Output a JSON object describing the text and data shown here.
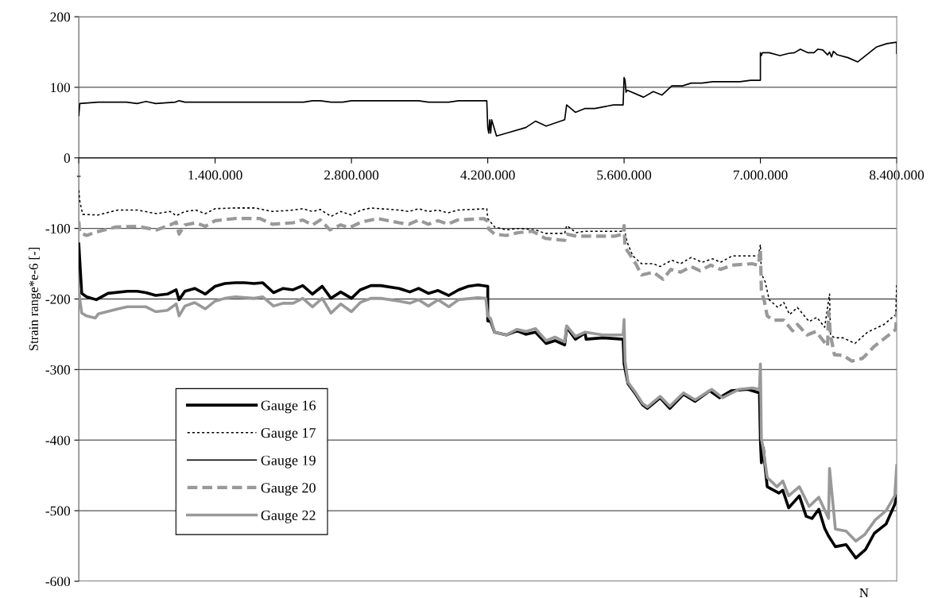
{
  "chart_data": {
    "type": "line",
    "xlabel": "N",
    "ylabel": "Strain range*e-6 [-]",
    "xlim": [
      0,
      8400000
    ],
    "xticks": [
      {
        "value": 0,
        "label": "-"
      },
      {
        "value": 1400000,
        "label": "1.400.000"
      },
      {
        "value": 2800000,
        "label": "2.800.000"
      },
      {
        "value": 4200000,
        "label": "4.200.000"
      },
      {
        "value": 5600000,
        "label": "5.600.000"
      },
      {
        "value": 7000000,
        "label": "7.000.000"
      },
      {
        "value": 8400000,
        "label": "8.400.000"
      }
    ],
    "ylim": [
      -600,
      200
    ],
    "yticks": [
      -600,
      -500,
      -400,
      -300,
      -200,
      -100,
      0,
      100,
      200
    ],
    "grid": "y",
    "legend": "bottom left",
    "marker": "none",
    "series": [
      {
        "name": "Gauge 16",
        "color": "#000000",
        "line_style": "solid",
        "x": [
          0,
          30000,
          80000,
          180000,
          300000,
          500000,
          600000,
          690000,
          790000,
          910000,
          1000000,
          1030000,
          1090000,
          1190000,
          1300000,
          1400000,
          1500000,
          1610000,
          1700000,
          1800000,
          1890000,
          2000000,
          2100000,
          2200000,
          2300000,
          2400000,
          2500000,
          2590000,
          2690000,
          2800000,
          2890000,
          3000000,
          3100000,
          3290000,
          3400000,
          3490000,
          3590000,
          3690000,
          3800000,
          3900000,
          4000000,
          4100000,
          4200000,
          4200000,
          4230000,
          4270000,
          4390000,
          4500000,
          4590000,
          4690000,
          4800000,
          4890000,
          4990000,
          5010000,
          5100000,
          5200000,
          5210000,
          5380000,
          5590000,
          5600000,
          5640000,
          5720000,
          5790000,
          5840000,
          5970000,
          6070000,
          6210000,
          6330000,
          6480000,
          6580000,
          6700000,
          6870000,
          6990000,
          7000000,
          7010000,
          7030000,
          7050000,
          7070000,
          7190000,
          7230000,
          7290000,
          7400000,
          7470000,
          7530000,
          7600000,
          7660000,
          7700000,
          7770000,
          7880000,
          7980000,
          8080000,
          8170000,
          8290000,
          8380000,
          8400000
        ],
        "values": [
          -122,
          -192,
          -197,
          -201,
          -192,
          -189,
          -189,
          -191,
          -195,
          -193,
          -187,
          -201,
          -189,
          -185,
          -193,
          -182,
          -178,
          -177,
          -177,
          -178,
          -177,
          -191,
          -185,
          -187,
          -181,
          -193,
          -182,
          -199,
          -190,
          -199,
          -187,
          -181,
          -181,
          -185,
          -190,
          -185,
          -192,
          -188,
          -195,
          -187,
          -182,
          -180,
          -182,
          -231,
          -232,
          -247,
          -251,
          -245,
          -250,
          -247,
          -263,
          -259,
          -265,
          -240,
          -257,
          -248,
          -257,
          -255,
          -257,
          -292,
          -320,
          -335,
          -350,
          -355,
          -340,
          -355,
          -335,
          -345,
          -330,
          -340,
          -330,
          -328,
          -333,
          -400,
          -432,
          -411,
          -440,
          -466,
          -475,
          -471,
          -496,
          -479,
          -508,
          -511,
          -498,
          -525,
          -536,
          -551,
          -548,
          -567,
          -555,
          -532,
          -519,
          -491,
          -479
        ]
      },
      {
        "name": "Gauge 17",
        "color": "#000000",
        "line_style": "dotted",
        "x": [
          0,
          10000,
          40000,
          200000,
          400000,
          600000,
          800000,
          940000,
          1000000,
          1090000,
          1200000,
          1300000,
          1400000,
          1600000,
          1810000,
          1990000,
          2200000,
          2300000,
          2400000,
          2480000,
          2590000,
          2690000,
          2800000,
          2900000,
          3000000,
          3290000,
          3390000,
          3490000,
          3590000,
          3690000,
          3790000,
          3890000,
          4190000,
          4200000,
          4230000,
          4270000,
          4390000,
          4510000,
          4690000,
          4790000,
          4990000,
          5010000,
          5110000,
          5200000,
          5590000,
          5600000,
          5630000,
          5690000,
          5780000,
          5900000,
          5970000,
          6090000,
          6180000,
          6290000,
          6400000,
          6510000,
          6590000,
          6710000,
          6980000,
          7000000,
          7010000,
          7050000,
          7090000,
          7180000,
          7240000,
          7300000,
          7380000,
          7500000,
          7580000,
          7660000,
          7710000,
          7720000,
          7760000,
          7850000,
          7970000,
          8100000,
          8270000,
          8390000,
          8400000
        ],
        "values": [
          -46,
          -61,
          -80,
          -81,
          -74,
          -74,
          -79,
          -76,
          -82,
          -76,
          -74,
          -79,
          -72,
          -71,
          -71,
          -76,
          -74,
          -72,
          -76,
          -73,
          -83,
          -76,
          -81,
          -74,
          -71,
          -74,
          -76,
          -72,
          -76,
          -74,
          -78,
          -74,
          -72,
          -86,
          -91,
          -98,
          -102,
          -100,
          -102,
          -107,
          -107,
          -96,
          -106,
          -104,
          -104,
          -98,
          -119,
          -139,
          -150,
          -150,
          -154,
          -145,
          -150,
          -141,
          -148,
          -143,
          -148,
          -139,
          -139,
          -123,
          -164,
          -176,
          -201,
          -212,
          -205,
          -222,
          -212,
          -232,
          -226,
          -240,
          -193,
          -251,
          -255,
          -255,
          -263,
          -247,
          -236,
          -222,
          -179
        ]
      },
      {
        "name": "Gauge 19",
        "color": "#000000",
        "line_style": "solid",
        "x": [
          0,
          10000,
          200000,
          490000,
          600000,
          690000,
          790000,
          990000,
          1030000,
          1090000,
          2310000,
          2400000,
          2480000,
          2590000,
          2710000,
          2800000,
          3490000,
          3590000,
          3800000,
          3900000,
          4190000,
          4200000,
          4210000,
          4220000,
          4230000,
          4240000,
          4290000,
          4390000,
          4590000,
          4690000,
          4800000,
          4990000,
          5010000,
          5100000,
          5200000,
          5300000,
          5490000,
          5590000,
          5600000,
          5610000,
          5620000,
          5630000,
          5800000,
          5900000,
          5990000,
          6090000,
          6200000,
          6290000,
          6400000,
          6510000,
          6790000,
          6900000,
          7000000,
          7000000,
          7010000,
          7020000,
          7090000,
          7200000,
          7290000,
          7350000,
          7410000,
          7490000,
          7550000,
          7590000,
          7640000,
          7690000,
          7710000,
          7730000,
          7750000,
          7790000,
          7900000,
          8000000,
          8190000,
          8300000,
          8400000,
          8400000
        ],
        "values": [
          60,
          77,
          79,
          79,
          77,
          80,
          77,
          79,
          81,
          79,
          79,
          81,
          81,
          79,
          79,
          81,
          81,
          79,
          79,
          81,
          81,
          43,
          35,
          54,
          35,
          54,
          31,
          35,
          43,
          52,
          45,
          54,
          75,
          64.5,
          70,
          70,
          75,
          75,
          114,
          110,
          93,
          96,
          86,
          94,
          89,
          102,
          102,
          106,
          106,
          108,
          108,
          110,
          110,
          149,
          145,
          149,
          149,
          145,
          148,
          149,
          154,
          149,
          149,
          154,
          153,
          146,
          150,
          143,
          151,
          146,
          142,
          136,
          157,
          162,
          164,
          148
        ]
      },
      {
        "name": "Gauge 20",
        "color": "#999999",
        "line_style": "dashed",
        "x": [
          0,
          10000,
          80000,
          180000,
          380000,
          600000,
          800000,
          940000,
          1000000,
          1030000,
          1090000,
          1200000,
          1300000,
          1400000,
          1600000,
          1860000,
          1990000,
          2200000,
          2300000,
          2400000,
          2480000,
          2580000,
          2690000,
          2780000,
          2900000,
          3070000,
          3290000,
          3390000,
          3490000,
          3590000,
          3690000,
          3790000,
          3890000,
          4160000,
          4200000,
          4210000,
          4270000,
          4390000,
          4510000,
          4660000,
          4790000,
          4990000,
          5010000,
          5110000,
          5200000,
          5500000,
          5590000,
          5600000,
          5610000,
          5650000,
          5720000,
          5780000,
          5900000,
          6000000,
          6080000,
          6180000,
          6290000,
          6380000,
          6490000,
          6590000,
          6710000,
          6910000,
          6980000,
          7000000,
          7010000,
          7040000,
          7070000,
          7130000,
          7240000,
          7330000,
          7380000,
          7480000,
          7570000,
          7690000,
          7700000,
          7720000,
          7760000,
          7850000,
          7940000,
          8050000,
          8170000,
          8300000,
          8390000,
          8400000
        ],
        "values": [
          -90,
          -106,
          -110,
          -105,
          -98,
          -97,
          -102,
          -95,
          -91,
          -108,
          -95,
          -92,
          -97,
          -89,
          -86,
          -86,
          -94,
          -92,
          -88,
          -95,
          -88,
          -102,
          -95,
          -99,
          -91,
          -86,
          -92,
          -94,
          -88,
          -94,
          -89,
          -94,
          -88,
          -86,
          -90,
          -101,
          -108,
          -110,
          -106,
          -104,
          -114,
          -117,
          -108,
          -111,
          -111,
          -111,
          -108,
          -96,
          -127,
          -135,
          -150,
          -166,
          -162,
          -172,
          -158,
          -162,
          -154,
          -160,
          -152,
          -158,
          -152,
          -150,
          -152,
          -129,
          -189,
          -203,
          -224,
          -230,
          -230,
          -245,
          -236,
          -251,
          -246,
          -267,
          -218,
          -251,
          -279,
          -280,
          -288,
          -284,
          -267,
          -253,
          -243,
          -218
        ]
      },
      {
        "name": "Gauge 22",
        "color": "#999999",
        "line_style": "solid",
        "x": [
          0,
          30000,
          80000,
          170000,
          200000,
          400000,
          500000,
          690000,
          790000,
          910000,
          1000000,
          1030000,
          1090000,
          1190000,
          1300000,
          1400000,
          1500000,
          1610000,
          1800000,
          1890000,
          2000000,
          2100000,
          2200000,
          2300000,
          2400000,
          2500000,
          2590000,
          2690000,
          2800000,
          2890000,
          3000000,
          3100000,
          3290000,
          3400000,
          3490000,
          3590000,
          3690000,
          3800000,
          3900000,
          4100000,
          4180000,
          4200000,
          4230000,
          4270000,
          4390000,
          4500000,
          4590000,
          4690000,
          4800000,
          4890000,
          4990000,
          5010000,
          5100000,
          5200000,
          5380000,
          5590000,
          5600000,
          5610000,
          5640000,
          5720000,
          5790000,
          5840000,
          5970000,
          6070000,
          6210000,
          6330000,
          6500000,
          6610000,
          6780000,
          6920000,
          6990000,
          7000000,
          7010000,
          7030000,
          7070000,
          7170000,
          7230000,
          7290000,
          7400000,
          7500000,
          7600000,
          7700000,
          7710000,
          7770000,
          7880000,
          7980000,
          8070000,
          8180000,
          8290000,
          8380000,
          8400000
        ],
        "values": [
          -190,
          -220,
          -224,
          -227,
          -221,
          -214,
          -211,
          -211,
          -218,
          -216,
          -207,
          -224,
          -210,
          -205,
          -214,
          -203,
          -199,
          -197,
          -199,
          -197,
          -210,
          -206,
          -206,
          -199,
          -211,
          -199,
          -220,
          -207,
          -218,
          -205,
          -199,
          -199,
          -203,
          -206,
          -201,
          -210,
          -201,
          -211,
          -201,
          -198,
          -199,
          -224,
          -228,
          -247,
          -251,
          -243,
          -246,
          -242,
          -259,
          -254,
          -261,
          -238,
          -253,
          -247,
          -251,
          -251,
          -229,
          -288,
          -318,
          -333,
          -348,
          -353,
          -338,
          -352,
          -333,
          -343,
          -328,
          -340,
          -328,
          -326,
          -328,
          -292,
          -398,
          -413,
          -453,
          -466,
          -458,
          -479,
          -466,
          -494,
          -481,
          -511,
          -440,
          -526,
          -529,
          -543,
          -534,
          -513,
          -500,
          -479,
          -436
        ]
      }
    ]
  }
}
